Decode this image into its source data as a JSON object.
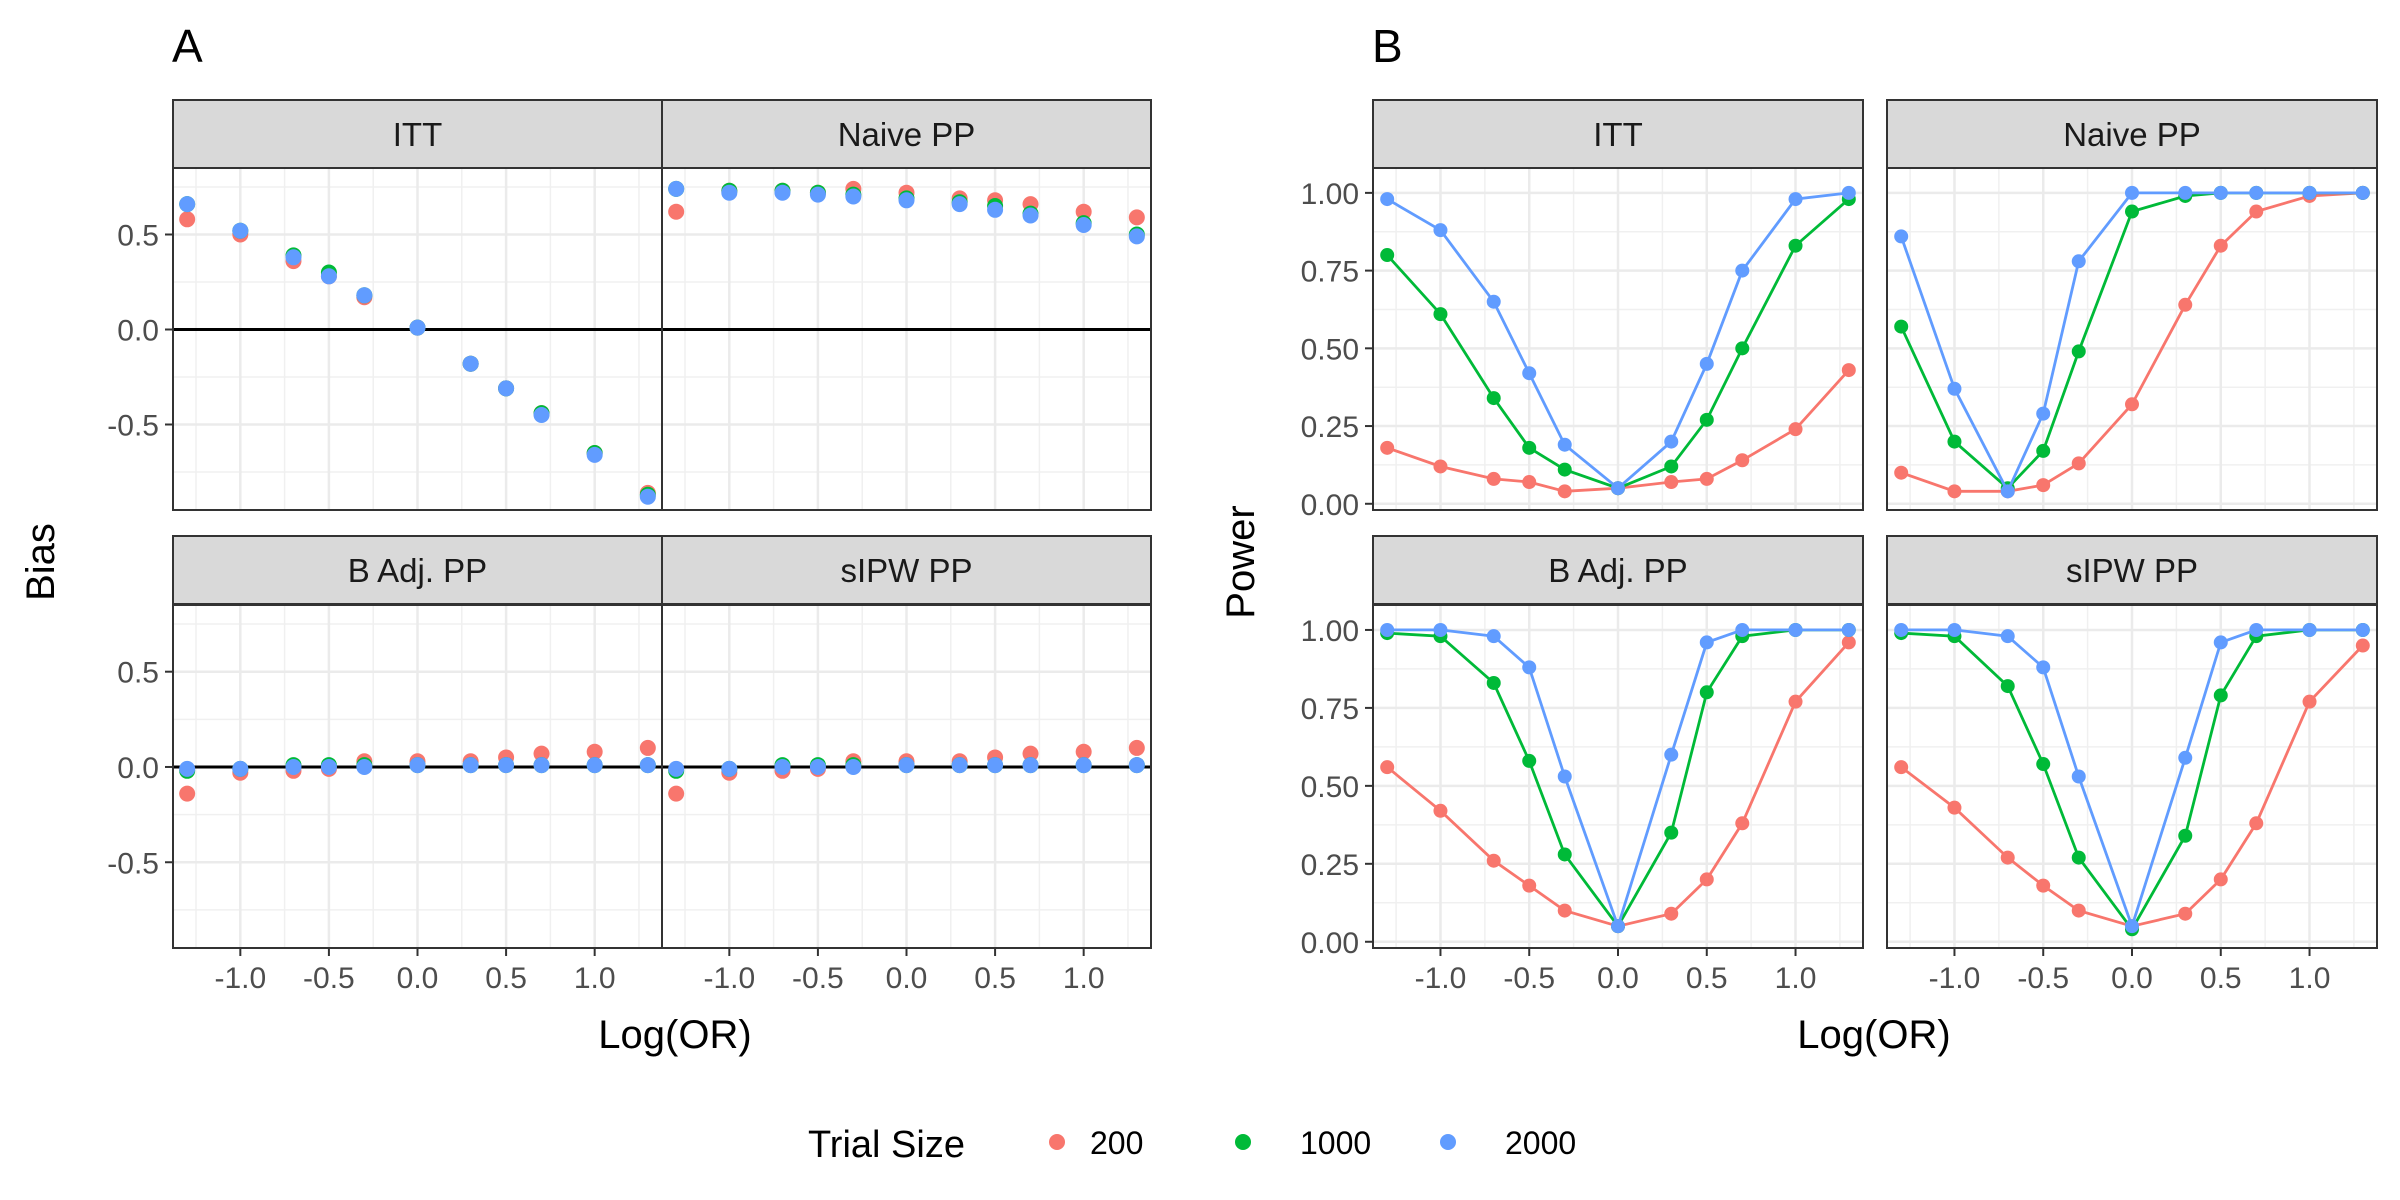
{
  "figure": {
    "panel_a": {
      "tag": "A",
      "ylabel": "Bias",
      "xlabel": "Log(OR)"
    },
    "panel_b": {
      "tag": "B",
      "ylabel": "Power",
      "xlabel": "Log(OR)"
    }
  },
  "legend": {
    "title": "Trial Size",
    "placement": "bottom",
    "entries": [
      {
        "label": "200",
        "color": "#F8766D"
      },
      {
        "label": "1000",
        "color": "#00BA38"
      },
      {
        "label": "2000",
        "color": "#619CFF"
      }
    ]
  },
  "chart_data": [
    {
      "type": "scatter",
      "panel": "A",
      "ylabel": "Bias",
      "xlabel": "Log(OR)",
      "xlim": [
        -1.38,
        1.38
      ],
      "ylim": [
        -0.95,
        0.85
      ],
      "xticks": [
        "-1.0",
        "-0.5",
        "0.0",
        "0.5",
        "1.0"
      ],
      "xtick_values": [
        -1.0,
        -0.5,
        0.0,
        0.5,
        1.0
      ],
      "yticks": [
        "-0.5",
        "0.0",
        "0.5"
      ],
      "ytick_values": [
        -0.5,
        0.0,
        0.5
      ],
      "reference_line_y": 0,
      "grid": true,
      "x": [
        -1.3,
        -1.0,
        -0.7,
        -0.5,
        -0.3,
        0.0,
        0.3,
        0.5,
        0.7,
        1.0,
        1.3
      ],
      "facets": [
        {
          "strip": "ITT",
          "series": [
            {
              "name": "200",
              "values": [
                0.58,
                0.5,
                0.36,
                0.28,
                0.17,
                0.01,
                -0.18,
                -0.31,
                -0.44,
                -0.65,
                -0.86
              ]
            },
            {
              "name": "1000",
              "values": [
                0.66,
                0.52,
                0.39,
                0.3,
                0.18,
                0.01,
                -0.18,
                -0.31,
                -0.44,
                -0.65,
                -0.87
              ]
            },
            {
              "name": "2000",
              "values": [
                0.66,
                0.52,
                0.38,
                0.28,
                0.18,
                0.01,
                -0.18,
                -0.31,
                -0.45,
                -0.66,
                -0.88
              ]
            }
          ]
        },
        {
          "strip": "Naive PP",
          "series": [
            {
              "name": "200",
              "values": [
                0.62,
                0.73,
                0.73,
                0.72,
                0.74,
                0.72,
                0.69,
                0.68,
                0.66,
                0.62,
                0.59
              ]
            },
            {
              "name": "1000",
              "values": [
                0.74,
                0.73,
                0.73,
                0.72,
                0.71,
                0.69,
                0.67,
                0.65,
                0.61,
                0.56,
                0.5
              ]
            },
            {
              "name": "2000",
              "values": [
                0.74,
                0.72,
                0.72,
                0.71,
                0.7,
                0.68,
                0.66,
                0.63,
                0.6,
                0.55,
                0.49
              ]
            }
          ]
        },
        {
          "strip": "B Adj. PP",
          "series": [
            {
              "name": "200",
              "values": [
                -0.14,
                -0.03,
                -0.02,
                -0.01,
                0.03,
                0.03,
                0.03,
                0.05,
                0.07,
                0.08,
                0.1
              ]
            },
            {
              "name": "1000",
              "values": [
                -0.02,
                -0.01,
                0.01,
                0.01,
                0.01,
                0.01,
                0.01,
                0.01,
                0.01,
                0.01,
                0.01
              ]
            },
            {
              "name": "2000",
              "values": [
                -0.01,
                -0.01,
                0.0,
                0.0,
                0.0,
                0.01,
                0.01,
                0.01,
                0.01,
                0.01,
                0.01
              ]
            }
          ]
        },
        {
          "strip": "sIPW PP",
          "series": [
            {
              "name": "200",
              "values": [
                -0.14,
                -0.03,
                -0.02,
                -0.01,
                0.03,
                0.03,
                0.03,
                0.05,
                0.07,
                0.08,
                0.1
              ]
            },
            {
              "name": "1000",
              "values": [
                -0.02,
                -0.01,
                0.01,
                0.01,
                0.01,
                0.01,
                0.01,
                0.01,
                0.01,
                0.01,
                0.01
              ]
            },
            {
              "name": "2000",
              "values": [
                -0.01,
                -0.01,
                0.0,
                0.0,
                0.0,
                0.01,
                0.01,
                0.01,
                0.01,
                0.01,
                0.01
              ]
            }
          ]
        }
      ]
    },
    {
      "type": "line",
      "panel": "B",
      "ylabel": "Power",
      "xlabel": "Log(OR)",
      "xlim": [
        -1.38,
        1.38
      ],
      "ylim": [
        -0.02,
        1.08
      ],
      "xticks": [
        "-1.0",
        "-0.5",
        "0.0",
        "0.5",
        "1.0"
      ],
      "xtick_values": [
        -1.0,
        -0.5,
        0.0,
        0.5,
        1.0
      ],
      "yticks": [
        "0.00",
        "0.25",
        "0.50",
        "0.75",
        "1.00"
      ],
      "ytick_values": [
        0.0,
        0.25,
        0.5,
        0.75,
        1.0
      ],
      "markers": true,
      "grid": true,
      "x": [
        -1.3,
        -1.0,
        -0.7,
        -0.5,
        -0.3,
        0.0,
        0.3,
        0.5,
        0.7,
        1.0,
        1.3
      ],
      "facets": [
        {
          "strip": "ITT",
          "series": [
            {
              "name": "200",
              "values": [
                0.18,
                0.12,
                0.08,
                0.07,
                0.04,
                0.05,
                0.07,
                0.08,
                0.14,
                0.24,
                0.43
              ]
            },
            {
              "name": "1000",
              "values": [
                0.8,
                0.61,
                0.34,
                0.18,
                0.11,
                0.05,
                0.12,
                0.27,
                0.5,
                0.83,
                0.98
              ]
            },
            {
              "name": "2000",
              "values": [
                0.98,
                0.88,
                0.65,
                0.42,
                0.19,
                0.05,
                0.2,
                0.45,
                0.75,
                0.98,
                1.0
              ]
            }
          ]
        },
        {
          "strip": "Naive PP",
          "series": [
            {
              "name": "200",
              "values": [
                0.1,
                0.04,
                0.04,
                0.06,
                0.13,
                0.32,
                0.64,
                0.83,
                0.94,
                0.99,
                1.0
              ]
            },
            {
              "name": "1000",
              "values": [
                0.57,
                0.2,
                0.05,
                0.17,
                0.49,
                0.94,
                0.99,
                1.0,
                1.0,
                1.0,
                1.0
              ]
            },
            {
              "name": "2000",
              "values": [
                0.86,
                0.37,
                0.04,
                0.29,
                0.78,
                1.0,
                1.0,
                1.0,
                1.0,
                1.0,
                1.0
              ]
            }
          ]
        },
        {
          "strip": "B Adj. PP",
          "series": [
            {
              "name": "200",
              "values": [
                0.56,
                0.42,
                0.26,
                0.18,
                0.1,
                0.05,
                0.09,
                0.2,
                0.38,
                0.77,
                0.96
              ]
            },
            {
              "name": "1000",
              "values": [
                0.99,
                0.98,
                0.83,
                0.58,
                0.28,
                0.05,
                0.35,
                0.8,
                0.98,
                1.0,
                1.0
              ]
            },
            {
              "name": "2000",
              "values": [
                1.0,
                1.0,
                0.98,
                0.88,
                0.53,
                0.05,
                0.6,
                0.96,
                1.0,
                1.0,
                1.0
              ]
            }
          ]
        },
        {
          "strip": "sIPW PP",
          "series": [
            {
              "name": "200",
              "values": [
                0.56,
                0.43,
                0.27,
                0.18,
                0.1,
                0.05,
                0.09,
                0.2,
                0.38,
                0.77,
                0.95
              ]
            },
            {
              "name": "1000",
              "values": [
                0.99,
                0.98,
                0.82,
                0.57,
                0.27,
                0.04,
                0.34,
                0.79,
                0.98,
                1.0,
                1.0
              ]
            },
            {
              "name": "2000",
              "values": [
                1.0,
                1.0,
                0.98,
                0.88,
                0.53,
                0.05,
                0.59,
                0.96,
                1.0,
                1.0,
                1.0
              ]
            }
          ]
        }
      ]
    }
  ]
}
